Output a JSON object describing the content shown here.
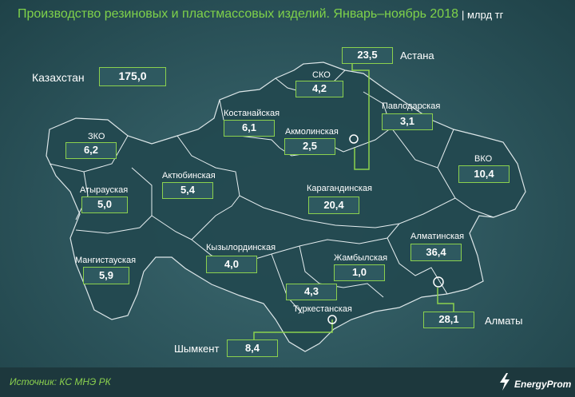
{
  "header": {
    "title": "Производство резиновых и пластмассовых изделий. Январь–ноябрь 2018",
    "unit": "| млрд тг"
  },
  "total": {
    "name": "Казахстан",
    "value": "175,0"
  },
  "regions": [
    {
      "id": "zko",
      "name": "ЗКО",
      "value": "6,2"
    },
    {
      "id": "atyrau",
      "name": "Атырауская",
      "value": "5,0"
    },
    {
      "id": "mangistau",
      "name": "Мангистауская",
      "value": "5,9"
    },
    {
      "id": "aktobe",
      "name": "Актюбинская",
      "value": "5,4"
    },
    {
      "id": "kostanay",
      "name": "Костанайская",
      "value": "6,1"
    },
    {
      "id": "sko",
      "name": "СКО",
      "value": "4,2"
    },
    {
      "id": "akmola",
      "name": "Акмолинская",
      "value": "2,5"
    },
    {
      "id": "pavlodar",
      "name": "Павлодарская",
      "value": "3,1"
    },
    {
      "id": "vko",
      "name": "ВКО",
      "value": "10,4"
    },
    {
      "id": "karaganda",
      "name": "Карагандинская",
      "value": "20,4"
    },
    {
      "id": "kyzylorda",
      "name": "Кызылординская",
      "value": "4,0"
    },
    {
      "id": "zhambyl",
      "name": "Жамбылская",
      "value": "1,0"
    },
    {
      "id": "almaty_reg",
      "name": "Алматинская",
      "value": "36,4"
    },
    {
      "id": "turkestan",
      "name": "Туркестанская",
      "value": "4,3"
    }
  ],
  "cities": [
    {
      "id": "astana",
      "name": "Астана",
      "value": "23,5"
    },
    {
      "id": "almaty",
      "name": "Алматы",
      "value": "28,1"
    },
    {
      "id": "shymkent",
      "name": "Шымкент",
      "value": "8,4"
    }
  ],
  "footer": {
    "source": "Источник: КС МНЭ РК",
    "brand": "EnergyProm"
  },
  "colors": {
    "accent": "#8bd14e",
    "map_fill": "#244a51",
    "border": "#e6eef0"
  }
}
